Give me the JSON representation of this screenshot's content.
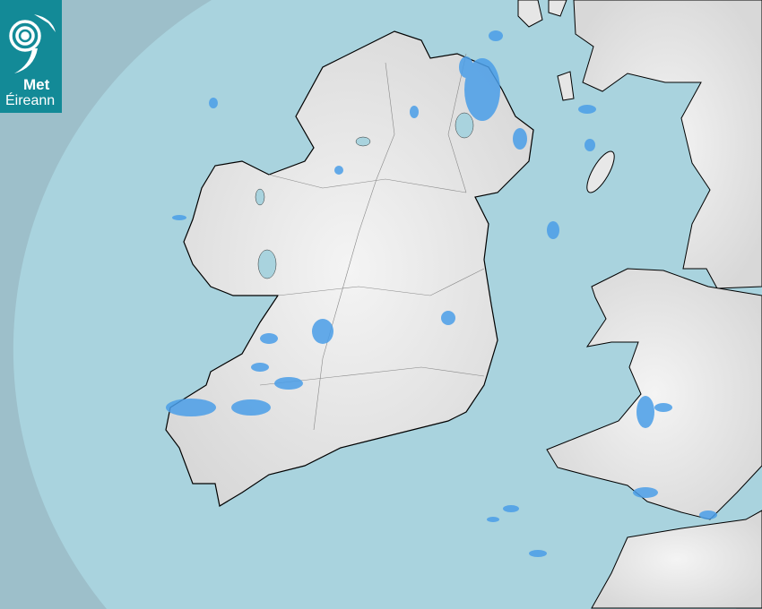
{
  "logo": {
    "line1": "Met",
    "line2": "Éireann",
    "color": "#138a97"
  },
  "map": {
    "type": "rainfall-radar",
    "colors": {
      "outside": "#9dbfca",
      "coverage": "#a9d3de",
      "land": "#efefef",
      "rain_light": "#5aaaf0",
      "rain_moderate": "#2f86d8"
    }
  }
}
